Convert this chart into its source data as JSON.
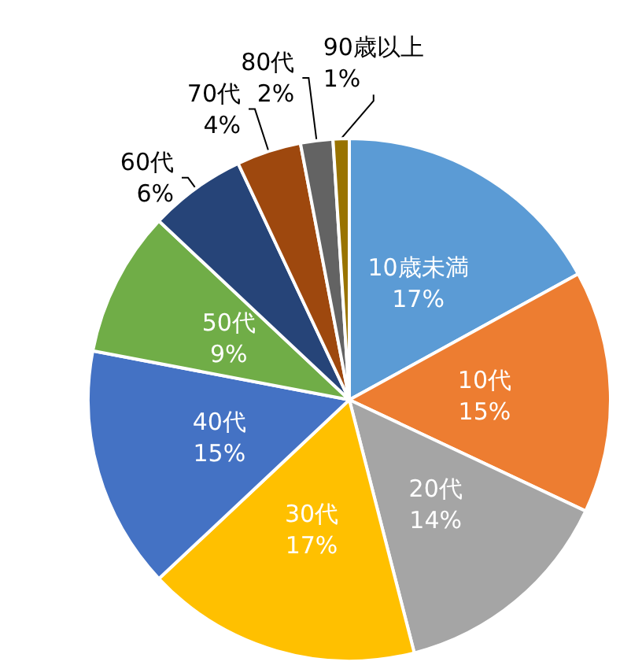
{
  "chart_data": {
    "type": "pie",
    "categories": [
      "10歳未満",
      "10代",
      "20代",
      "30代",
      "40代",
      "50代",
      "60代",
      "70代",
      "80代",
      "90歳以上"
    ],
    "values": [
      17,
      15,
      14,
      17,
      15,
      9,
      6,
      4,
      2,
      1
    ],
    "value_labels": [
      "17%",
      "15%",
      "14%",
      "17%",
      "15%",
      "9%",
      "6%",
      "4%",
      "2%",
      "1%"
    ],
    "colors": [
      "#5b9bd5",
      "#ed7d31",
      "#a5a5a5",
      "#ffc000",
      "#4472c4",
      "#70ad47",
      "#264478",
      "#9e480e",
      "#636363",
      "#997300"
    ],
    "legend": false
  }
}
